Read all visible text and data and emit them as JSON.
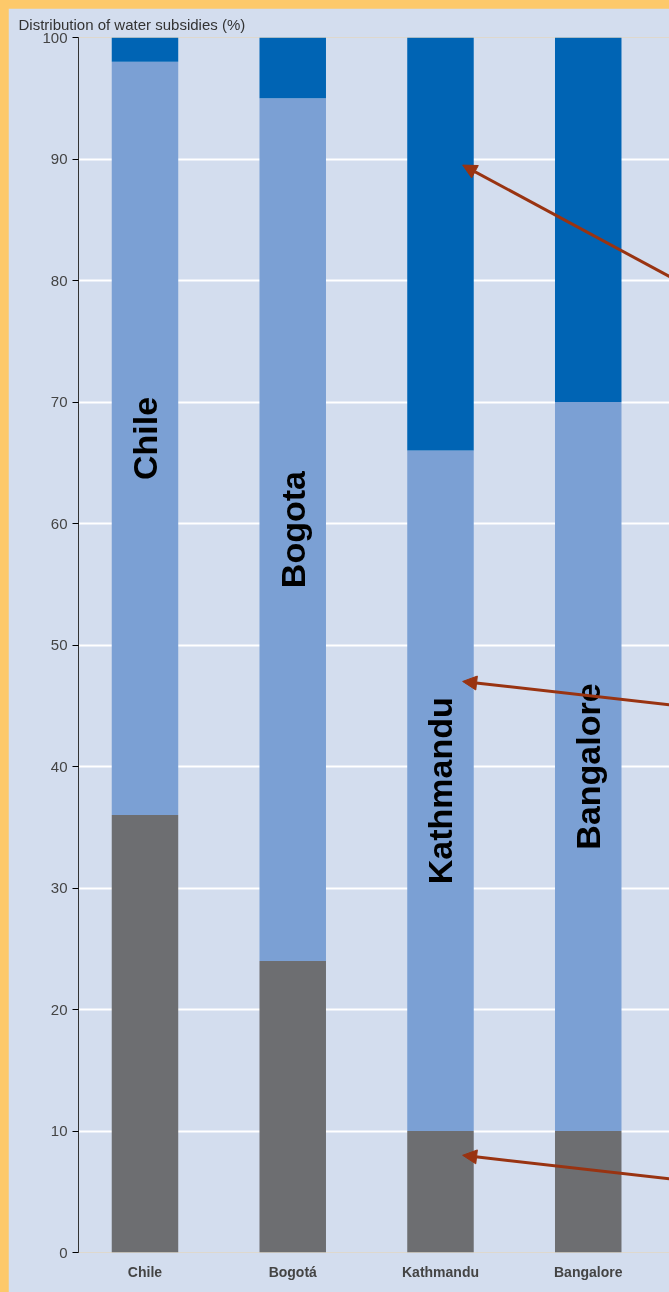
{
  "chart_data": {
    "type": "bar",
    "title": "Distribution of water subsidies (%)",
    "categories": [
      "Chile",
      "Bogotá",
      "Kathmandu",
      "Bangalore"
    ],
    "stacked": true,
    "series": [
      {
        "color": "#6d6e71",
        "values": [
          36,
          24,
          10,
          10
        ]
      },
      {
        "color": "#7ba0d4",
        "values": [
          62,
          71,
          56,
          60
        ]
      },
      {
        "color": "#0064b4",
        "values": [
          2,
          5,
          34,
          30
        ]
      }
    ],
    "ylim": [
      0,
      100
    ],
    "yticks": [
      0,
      10,
      20,
      30,
      40,
      50,
      60,
      70,
      80,
      90,
      100
    ],
    "grid": "y",
    "annotations": [
      "Chile",
      "Bogota",
      "Kathmandu",
      "Bangalore"
    ]
  }
}
